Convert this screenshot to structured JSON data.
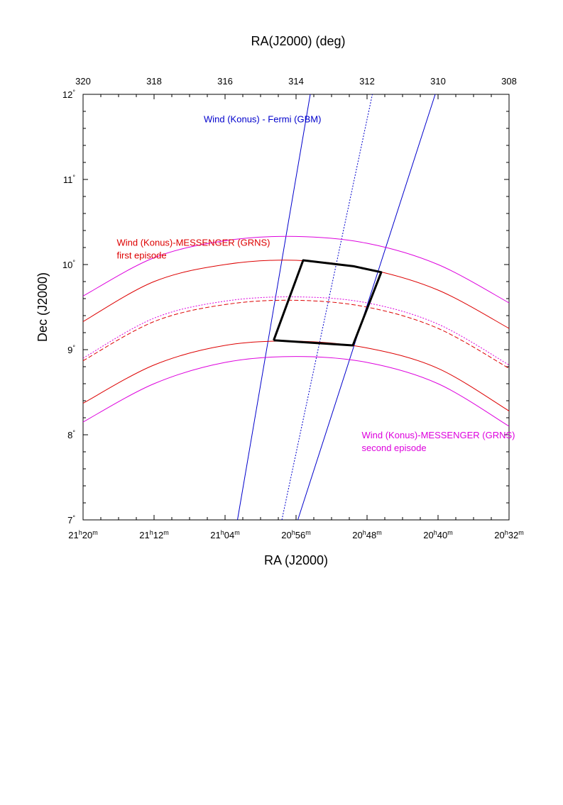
{
  "chart_data": {
    "type": "line",
    "title": "",
    "top_axis": {
      "label": "RA(J2000) (deg)",
      "ticks": [
        320,
        318,
        316,
        314,
        312,
        310,
        308
      ],
      "range": [
        320,
        308
      ]
    },
    "bottom_axis": {
      "label": "RA (J2000)",
      "ticks": [
        {
          "ra_deg": 320,
          "h": "21",
          "m": "20"
        },
        {
          "ra_deg": 318,
          "h": "21",
          "m": "12"
        },
        {
          "ra_deg": 316,
          "h": "21",
          "m": "04"
        },
        {
          "ra_deg": 314,
          "h": "20",
          "m": "56"
        },
        {
          "ra_deg": 312,
          "h": "20",
          "m": "48"
        },
        {
          "ra_deg": 310,
          "h": "20",
          "m": "40"
        },
        {
          "ra_deg": 308,
          "h": "20",
          "m": "32"
        }
      ],
      "hour_marker": "h",
      "minute_marker": "m"
    },
    "left_axis": {
      "label": "Dec (J2000)",
      "ticks": [
        7,
        8,
        9,
        10,
        11,
        12
      ],
      "range": [
        7,
        12
      ],
      "degree_marker": "°"
    },
    "colors": {
      "wind_fermi": "#0000cc",
      "messenger_first": "#dd0000",
      "messenger_second": "#dd00dd",
      "error_box": "#000000"
    },
    "series": [
      {
        "name": "wind-fermi-edge-1",
        "color": "#0000cc",
        "style": "solid",
        "x": [
          315.65,
          313.6
        ],
        "y": [
          7.0,
          12.0
        ]
      },
      {
        "name": "wind-fermi-center",
        "color": "#0000cc",
        "style": "dotted",
        "x": [
          314.4,
          311.85
        ],
        "y": [
          7.0,
          12.0
        ]
      },
      {
        "name": "wind-fermi-edge-2",
        "color": "#0000cc",
        "style": "solid",
        "x": [
          313.95,
          310.08
        ],
        "y": [
          7.0,
          12.0
        ]
      },
      {
        "name": "messenger-first-outer",
        "color": "#dd0000",
        "style": "solid",
        "x": [
          320,
          318,
          316,
          314,
          312,
          310,
          308
        ],
        "y": [
          9.33,
          9.8,
          10.0,
          10.05,
          9.95,
          9.7,
          9.25
        ]
      },
      {
        "name": "messenger-first-center",
        "color": "#dd0000",
        "style": "dashed",
        "x": [
          320,
          318,
          316,
          314,
          312,
          310,
          308
        ],
        "y": [
          8.87,
          9.33,
          9.53,
          9.58,
          9.5,
          9.25,
          8.78
        ]
      },
      {
        "name": "messenger-first-inner",
        "color": "#dd0000",
        "style": "solid",
        "x": [
          320,
          318,
          316,
          314,
          312,
          310,
          308
        ],
        "y": [
          8.37,
          8.82,
          9.05,
          9.1,
          9.02,
          8.78,
          8.28
        ]
      },
      {
        "name": "messenger-second-outer",
        "color": "#dd00dd",
        "style": "solid",
        "x": [
          320,
          318,
          316,
          314,
          312,
          310,
          308
        ],
        "y": [
          9.63,
          10.08,
          10.28,
          10.33,
          10.25,
          10.0,
          9.55
        ]
      },
      {
        "name": "messenger-second-center",
        "color": "#dd00dd",
        "style": "dotted",
        "x": [
          320,
          318,
          316,
          314,
          312,
          310,
          308
        ],
        "y": [
          8.9,
          9.37,
          9.57,
          9.62,
          9.55,
          9.3,
          8.82
        ]
      },
      {
        "name": "messenger-second-inner",
        "color": "#dd00dd",
        "style": "solid",
        "x": [
          320,
          318,
          316,
          314,
          312,
          310,
          308
        ],
        "y": [
          8.15,
          8.6,
          8.85,
          8.92,
          8.85,
          8.6,
          8.1
        ]
      },
      {
        "name": "error-box",
        "color": "#000000",
        "style": "bold",
        "x": [
          314.63,
          313.8,
          312.38,
          311.6,
          312.4,
          314.63
        ],
        "y": [
          9.11,
          10.05,
          9.98,
          9.91,
          9.05,
          9.11
        ]
      }
    ],
    "annotations": [
      {
        "name": "wind-fermi-label",
        "lines": [
          "Wind (Konus) - Fermi (GBM)"
        ],
        "color": "#0000cc",
        "at": [
          316.6,
          11.67
        ]
      },
      {
        "name": "messenger-first-label",
        "lines": [
          "Wind (Konus)-MESSENGER (GRNS)",
          "first episode"
        ],
        "color": "#dd0000",
        "at": [
          319.05,
          10.22
        ]
      },
      {
        "name": "messenger-second-label",
        "lines": [
          "Wind (Konus)-MESSENGER (GRNS)",
          "second episode"
        ],
        "color": "#dd00dd",
        "at": [
          312.15,
          7.96
        ]
      }
    ]
  }
}
